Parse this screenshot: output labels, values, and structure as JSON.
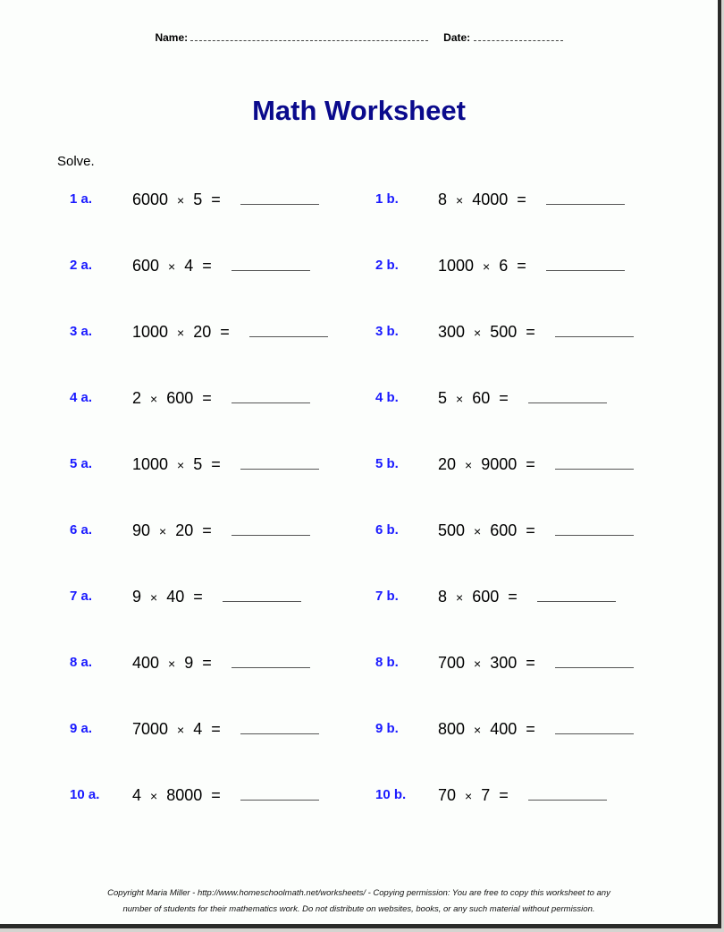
{
  "header": {
    "name_label": "Name:",
    "date_label": "Date:"
  },
  "title": "Math Worksheet",
  "instruction": "Solve.",
  "problems": [
    {
      "label": "1 a.",
      "a": "6000",
      "b": "5"
    },
    {
      "label": "1 b.",
      "a": "8",
      "b": "4000"
    },
    {
      "label": "2 a.",
      "a": "600",
      "b": "4"
    },
    {
      "label": "2 b.",
      "a": "1000",
      "b": "6"
    },
    {
      "label": "3 a.",
      "a": "1000",
      "b": "20"
    },
    {
      "label": "3 b.",
      "a": "300",
      "b": "500"
    },
    {
      "label": "4 a.",
      "a": "2",
      "b": "600"
    },
    {
      "label": "4 b.",
      "a": "5",
      "b": "60"
    },
    {
      "label": "5 a.",
      "a": "1000",
      "b": "5"
    },
    {
      "label": "5 b.",
      "a": "20",
      "b": "9000"
    },
    {
      "label": "6 a.",
      "a": "90",
      "b": "20"
    },
    {
      "label": "6 b.",
      "a": "500",
      "b": "600"
    },
    {
      "label": "7 a.",
      "a": "9",
      "b": "40"
    },
    {
      "label": "7 b.",
      "a": "8",
      "b": "600"
    },
    {
      "label": "8 a.",
      "a": "400",
      "b": "9"
    },
    {
      "label": "8 b.",
      "a": "700",
      "b": "300"
    },
    {
      "label": "9 a.",
      "a": "7000",
      "b": "4"
    },
    {
      "label": "9 b.",
      "a": "800",
      "b": "400"
    },
    {
      "label": "10 a.",
      "a": "4",
      "b": "8000"
    },
    {
      "label": "10 b.",
      "a": "70",
      "b": "7"
    }
  ],
  "operator": "×",
  "equals": "=",
  "footer": {
    "line1": "Copyright Maria Miller - http://www.homeschoolmath.net/worksheets/ - Copying permission: You are free to copy this worksheet to any",
    "line2": "number of students for their mathematics work. Do not distribute on websites, books, or any such material without permission."
  }
}
